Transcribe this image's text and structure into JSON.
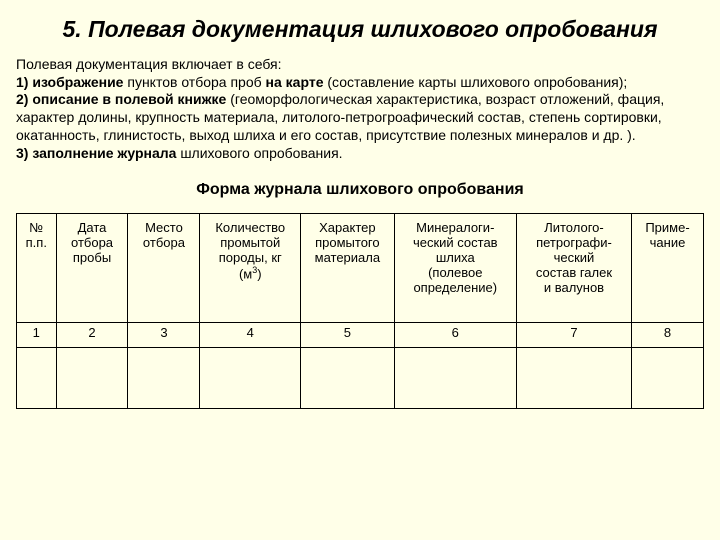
{
  "heading": "5. Полевая документация шлихового опробования",
  "intro_line": "Полевая документация включает в себя:",
  "item1_a": "1) изображение",
  "item1_b": " пунктов отбора проб ",
  "item1_c": "на карте",
  "item1_d": " (составление карты шлихового опробования);",
  "item2_a": "2) описание в полевой книжке",
  "item2_b": " (геоморфологическая характеристика, возраст отложений, фация, характер долины, крупность материала, литолого-петрогроафический состав, степень сортировки, окатанность, глинистость, выход шлиха и его состав, присутствие полезных минералов и др. ).",
  "item3_a": "3) заполнение журнала",
  "item3_b": " шлихового опробования.",
  "subheading": "Форма журнала шлихового опробования",
  "table": {
    "headers": {
      "c0a": "№",
      "c0b": "п.п.",
      "c1a": "Дата",
      "c1b": "отбора",
      "c1c": "пробы",
      "c2a": "Место",
      "c2b": "отбора",
      "c3a": "Количество",
      "c3b": "промытой",
      "c3c": "породы, кг",
      "c3d": "(м",
      "c3e": "3",
      "c3f": ")",
      "c4a": "Характер",
      "c4b": "промытого",
      "c4c": "материала",
      "c5a": "Минералоги-",
      "c5b": "ческий состав",
      "c5c": "шлиха",
      "c5d": "(полевое",
      "c5e": "определение)",
      "c6a": "Литолого-",
      "c6b": "петрографи-",
      "c6c": "ческий",
      "c6d": "состав галек",
      "c6e": "и валунов",
      "c7a": "Приме-",
      "c7b": "чание"
    },
    "nums": [
      "1",
      "2",
      "3",
      "4",
      "5",
      "6",
      "7",
      "8"
    ]
  }
}
